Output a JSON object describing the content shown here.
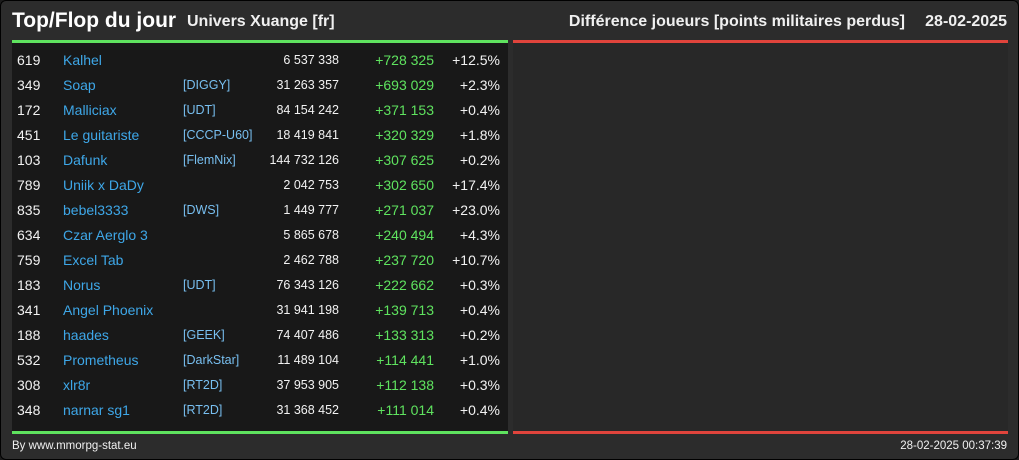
{
  "header": {
    "title": "Top/Flop du jour",
    "universe": "Univers Xuange [fr]",
    "metric": "Différence joueurs [points militaires perdus]",
    "date": "28-02-2025"
  },
  "colors": {
    "top_accent": "#5fe35f",
    "flop_accent": "#e0443c",
    "name_link": "#3ea7e8"
  },
  "table": {
    "rows": [
      {
        "rank": "619",
        "name": "Kalhel",
        "alliance": "",
        "points": "6 537 338",
        "diff": "+728 325",
        "pct": "+12.5%"
      },
      {
        "rank": "349",
        "name": "Soap",
        "alliance": "[DIGGY]",
        "points": "31 263 357",
        "diff": "+693 029",
        "pct": "+2.3%"
      },
      {
        "rank": "172",
        "name": "Malliciax",
        "alliance": "[UDT]",
        "points": "84 154 242",
        "diff": "+371 153",
        "pct": "+0.4%"
      },
      {
        "rank": "451",
        "name": "Le guitariste",
        "alliance": "[CCCP-U60]",
        "points": "18 419 841",
        "diff": "+320 329",
        "pct": "+1.8%"
      },
      {
        "rank": "103",
        "name": "Dafunk",
        "alliance": "[FlemNix]",
        "points": "144 732 126",
        "diff": "+307 625",
        "pct": "+0.2%"
      },
      {
        "rank": "789",
        "name": "Uniik x DaDy",
        "alliance": "",
        "points": "2 042 753",
        "diff": "+302 650",
        "pct": "+17.4%"
      },
      {
        "rank": "835",
        "name": "bebel3333",
        "alliance": "[DWS]",
        "points": "1 449 777",
        "diff": "+271 037",
        "pct": "+23.0%"
      },
      {
        "rank": "634",
        "name": "Czar Aerglo 3",
        "alliance": "",
        "points": "5 865 678",
        "diff": "+240 494",
        "pct": "+4.3%"
      },
      {
        "rank": "759",
        "name": "Excel Tab",
        "alliance": "",
        "points": "2 462 788",
        "diff": "+237 720",
        "pct": "+10.7%"
      },
      {
        "rank": "183",
        "name": "Norus",
        "alliance": "[UDT]",
        "points": "76 343 126",
        "diff": "+222 662",
        "pct": "+0.3%"
      },
      {
        "rank": "341",
        "name": "Angel Phoenix",
        "alliance": "",
        "points": "31 941 198",
        "diff": "+139 713",
        "pct": "+0.4%"
      },
      {
        "rank": "188",
        "name": "haades",
        "alliance": "[GEEK]",
        "points": "74 407 486",
        "diff": "+133 313",
        "pct": "+0.2%"
      },
      {
        "rank": "532",
        "name": "Prometheus",
        "alliance": "[DarkStar]",
        "points": "11 489 104",
        "diff": "+114 441",
        "pct": "+1.0%"
      },
      {
        "rank": "308",
        "name": "xlr8r",
        "alliance": "[RT2D]",
        "points": "37 953 905",
        "diff": "+112 138",
        "pct": "+0.3%"
      },
      {
        "rank": "348",
        "name": "narnar sg1",
        "alliance": "[RT2D]",
        "points": "31 368 452",
        "diff": "+111 014",
        "pct": "+0.4%"
      }
    ]
  },
  "footer": {
    "credit": "By www.mmorpg-stat.eu",
    "timestamp": "28-02-2025 00:37:39"
  }
}
